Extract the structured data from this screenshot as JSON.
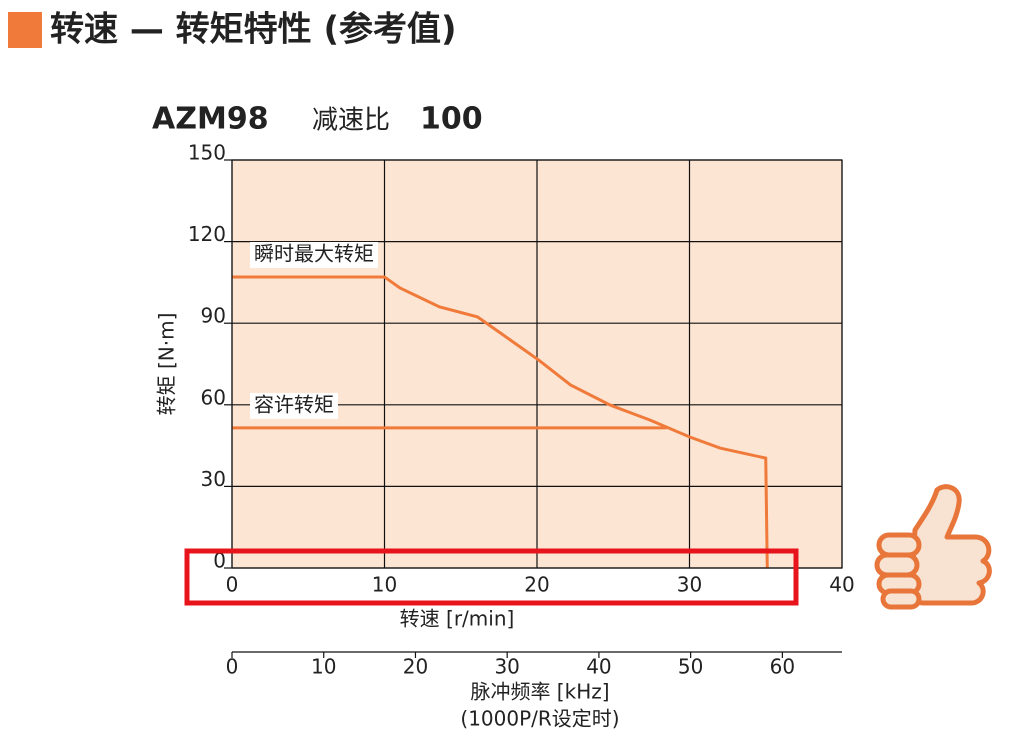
{
  "chart_data": {
    "type": "line",
    "title": "转速 — 转矩特性 (参考值)",
    "subtitle_parts": [
      "AZM98",
      "减速比",
      "100"
    ],
    "xlabel": "转速 [r/min]",
    "ylabel": "转矩 [N·m]",
    "x2label": "脉冲频率 [kHz]",
    "x2note": "(1000P/R设定时)",
    "xlim": [
      0,
      40
    ],
    "xticks": [
      0,
      10,
      20,
      30,
      40
    ],
    "ylim": [
      0,
      150
    ],
    "yticks": [
      0,
      30,
      60,
      90,
      120,
      150
    ],
    "x2lim": [
      0,
      66.5
    ],
    "x2ticks": [
      0,
      10,
      20,
      30,
      40,
      50,
      60
    ],
    "grid": true,
    "series": [
      {
        "name": "瞬时最大转矩",
        "color": "#f07a3a",
        "x": [
          0,
          10,
          11,
          13.6,
          16.1,
          17.6,
          20.1,
          22.2,
          24.8,
          27.4,
          30,
          32,
          35,
          35.1
        ],
        "values": [
          107,
          107,
          103,
          96,
          92.3,
          86.4,
          76.5,
          67.3,
          59.9,
          54.4,
          48.2,
          44.1,
          40.4,
          0
        ]
      },
      {
        "name": "容许转矩",
        "color": "#f07a3a",
        "x": [
          0,
          28.5
        ],
        "values": [
          51.5,
          51.5
        ]
      }
    ]
  }
}
